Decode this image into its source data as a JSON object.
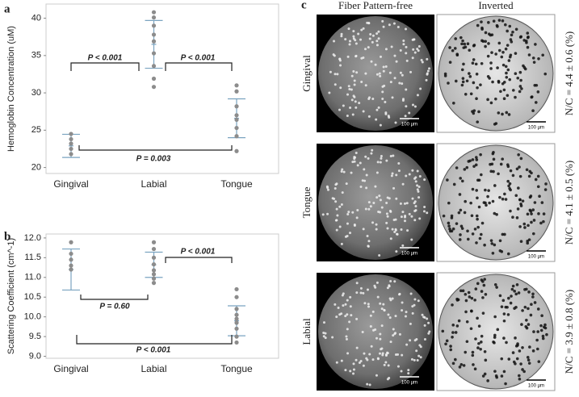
{
  "chart_data": [
    {
      "type": "strip",
      "label": "a",
      "y_label": "Hemoglobin Concentration (uM)",
      "categories": [
        "Gingival",
        "Labial",
        "Tongue"
      ],
      "values": [
        [
          24.5,
          23.8,
          23.2,
          22.5,
          21.8
        ],
        [
          40.8,
          40.1,
          39.0,
          37.8,
          36.9,
          35.3,
          33.6,
          31.9,
          30.8
        ],
        [
          31.0,
          30.2,
          28.2,
          27.0,
          26.4,
          25.3,
          24.2,
          22.2
        ]
      ],
      "mean": [
        22.9,
        36.5,
        26.6
      ],
      "sd": [
        1.55,
        3.2,
        2.6
      ],
      "point_color": "#8c8c8c",
      "bar_color": "#7aa3c0",
      "ylim": [
        19.2,
        41.9
      ],
      "yticks": [
        20,
        25,
        30,
        35,
        40
      ],
      "annotations": [
        "P < 0.001",
        "P < 0.001",
        "P = 0.003"
      ]
    },
    {
      "type": "strip",
      "label": "b",
      "y_label": "Scattering Coefficient (cm^-1)",
      "categories": [
        "Gingival",
        "Labial",
        "Tongue"
      ],
      "values": [
        [
          11.89,
          11.6,
          11.45,
          11.3,
          11.2
        ],
        [
          11.89,
          11.72,
          11.5,
          11.33,
          11.18,
          11.08,
          10.97,
          10.86
        ],
        [
          10.7,
          10.5,
          10.2,
          10.05,
          9.95,
          9.85,
          9.7,
          9.5,
          9.35
        ]
      ],
      "mean": [
        11.2,
        11.32,
        9.9
      ],
      "sd": [
        0.52,
        0.32,
        0.38
      ],
      "point_color": "#8c8c8c",
      "bar_color": "#7aa3c0",
      "ylim": [
        8.95,
        12.1
      ],
      "yticks": [
        {
          "value": 9,
          "label": "9.0"
        },
        {
          "value": 9.5,
          "label": "9.5"
        },
        {
          "value": 10,
          "label": "10.0"
        },
        {
          "value": 10.5,
          "label": "10.5"
        },
        {
          "value": 11,
          "label": "11.0"
        },
        {
          "value": 11.5,
          "label": "11.5"
        },
        {
          "value": 12,
          "label": "12.0"
        }
      ],
      "annotations": [
        "P = 0.60",
        "P < 0.001",
        "P < 0.001"
      ]
    }
  ],
  "panel_c": {
    "label": "c",
    "columns": [
      "Fiber Pattern-free",
      "Inverted"
    ],
    "rows": [
      {
        "name": "Gingival",
        "nc": "N/C = 4.4 ± 0.6 (%)"
      },
      {
        "name": "Tongue",
        "nc": "N/C = 4.1 ± 0.5 (%)"
      },
      {
        "name": "Labial",
        "nc": "N/C = 3.9 ± 0.8 (%)"
      }
    ],
    "scale_bar": "100 µm"
  }
}
